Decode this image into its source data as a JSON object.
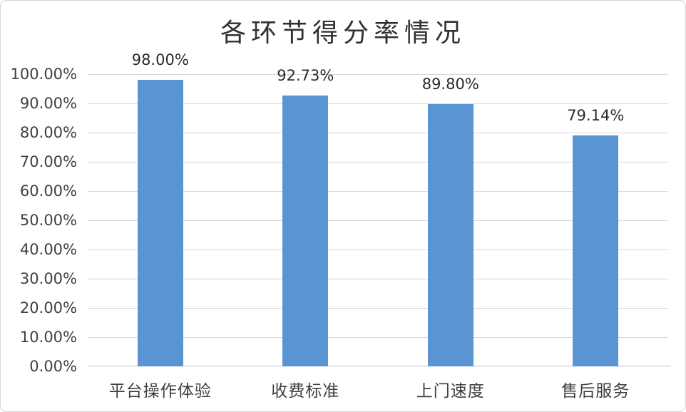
{
  "chart_data": {
    "type": "bar",
    "title": "各环节得分率情况",
    "categories": [
      "平台操作体验",
      "收费标准",
      "上门速度",
      "售后服务"
    ],
    "values": [
      98.0,
      92.73,
      89.8,
      79.14
    ],
    "value_labels": [
      "98.00%",
      "92.73%",
      "89.80%",
      "79.14%"
    ],
    "y_ticks": [
      "100.00%",
      "90.00%",
      "80.00%",
      "70.00%",
      "60.00%",
      "50.00%",
      "40.00%",
      "30.00%",
      "20.00%",
      "10.00%",
      "0.00%"
    ],
    "ylim": [
      0,
      100
    ],
    "xlabel": "",
    "ylabel": "",
    "legend": "none",
    "grid": true,
    "bar_color": "#5b94d2",
    "gridline_color": "#d8d8d8",
    "axis_line_color": "#c0c0c0",
    "frame_border_color": "#d4d4d4"
  }
}
